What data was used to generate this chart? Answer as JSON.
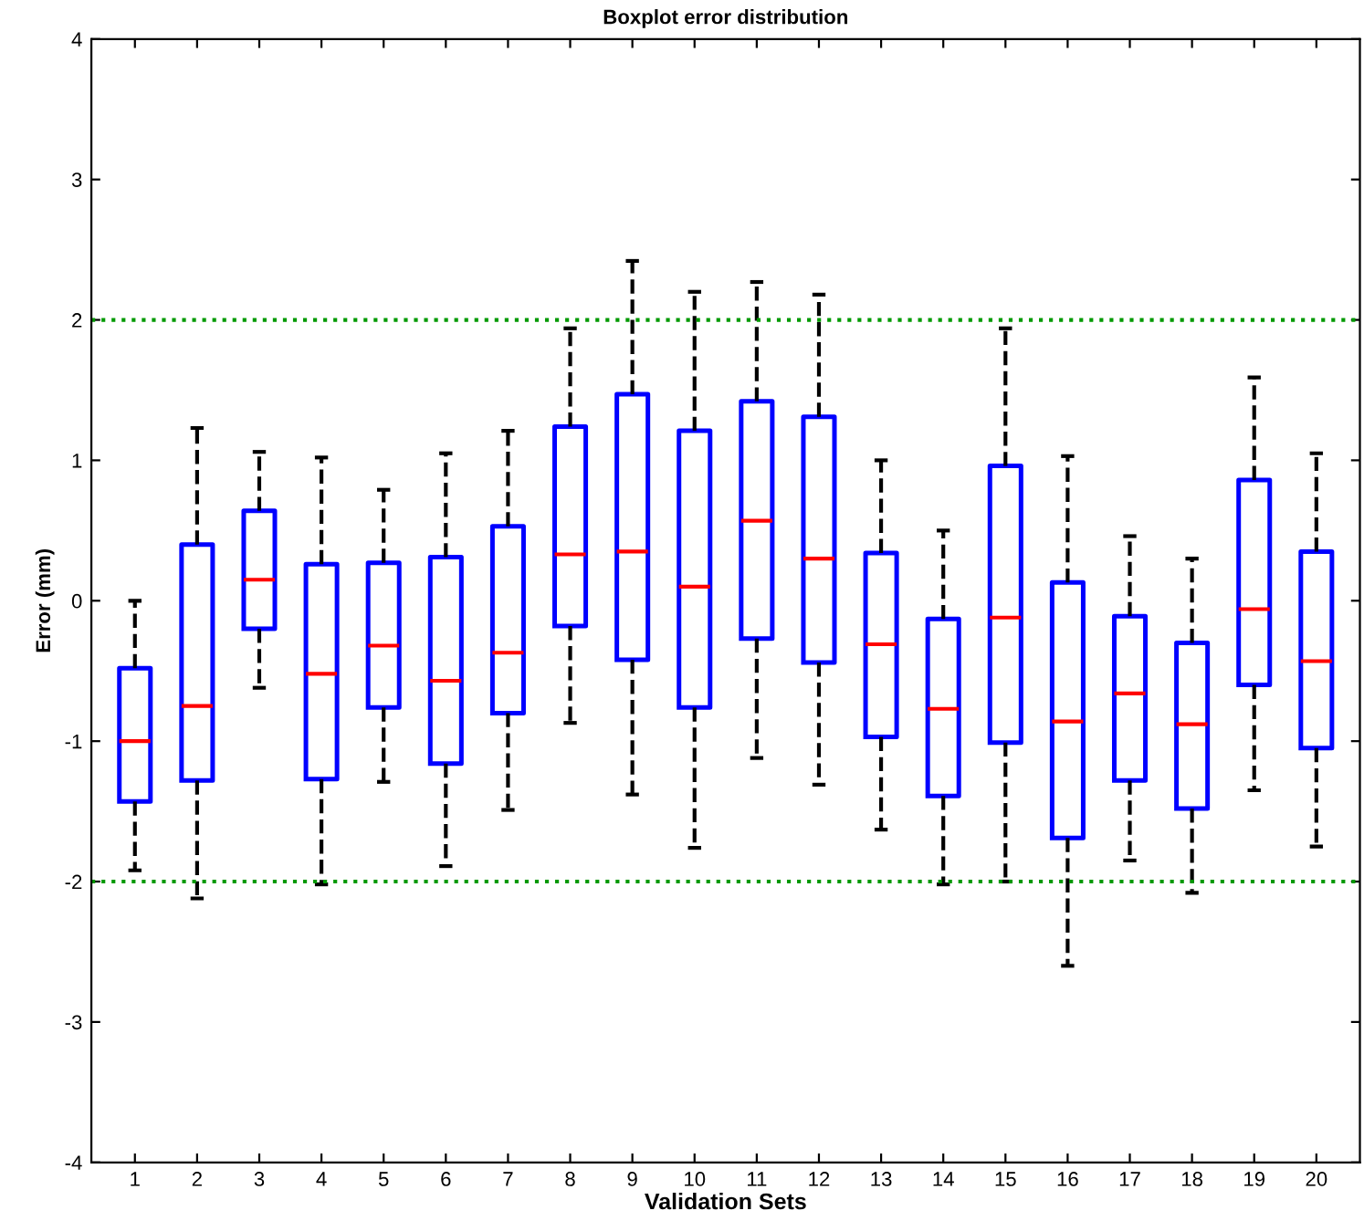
{
  "chart_data": {
    "type": "box",
    "title": "Boxplot error distribution",
    "xlabel": "Validation Sets",
    "ylabel": "Error (mm)",
    "categories": [
      "1",
      "2",
      "3",
      "4",
      "5",
      "6",
      "7",
      "8",
      "9",
      "10",
      "11",
      "12",
      "13",
      "14",
      "15",
      "16",
      "17",
      "18",
      "19",
      "20"
    ],
    "boxes": [
      {
        "low": -1.92,
        "q1": -1.43,
        "median": -1.0,
        "q3": -0.48,
        "high": 0.0
      },
      {
        "low": -2.12,
        "q1": -1.28,
        "median": -0.75,
        "q3": 0.4,
        "high": 1.23
      },
      {
        "low": -0.62,
        "q1": -0.2,
        "median": 0.15,
        "q3": 0.64,
        "high": 1.06
      },
      {
        "low": -2.02,
        "q1": -1.27,
        "median": -0.52,
        "q3": 0.26,
        "high": 1.02
      },
      {
        "low": -1.29,
        "q1": -0.76,
        "median": -0.32,
        "q3": 0.27,
        "high": 0.79
      },
      {
        "low": -1.89,
        "q1": -1.16,
        "median": -0.57,
        "q3": 0.31,
        "high": 1.05
      },
      {
        "low": -1.49,
        "q1": -0.8,
        "median": -0.37,
        "q3": 0.53,
        "high": 1.21
      },
      {
        "low": -0.87,
        "q1": -0.18,
        "median": 0.33,
        "q3": 1.24,
        "high": 1.94
      },
      {
        "low": -1.38,
        "q1": -0.42,
        "median": 0.35,
        "q3": 1.47,
        "high": 2.42
      },
      {
        "low": -1.76,
        "q1": -0.76,
        "median": 0.1,
        "q3": 1.21,
        "high": 2.2
      },
      {
        "low": -1.12,
        "q1": -0.27,
        "median": 0.57,
        "q3": 1.42,
        "high": 2.27
      },
      {
        "low": -1.31,
        "q1": -0.44,
        "median": 0.3,
        "q3": 1.31,
        "high": 2.18
      },
      {
        "low": -1.63,
        "q1": -0.97,
        "median": -0.31,
        "q3": 0.34,
        "high": 1.0
      },
      {
        "low": -2.02,
        "q1": -1.39,
        "median": -0.77,
        "q3": -0.13,
        "high": 0.5
      },
      {
        "low": -2.0,
        "q1": -1.01,
        "median": -0.12,
        "q3": 0.96,
        "high": 1.94
      },
      {
        "low": -2.6,
        "q1": -1.69,
        "median": -0.86,
        "q3": 0.13,
        "high": 1.03
      },
      {
        "low": -1.85,
        "q1": -1.28,
        "median": -0.66,
        "q3": -0.11,
        "high": 0.46
      },
      {
        "low": -2.08,
        "q1": -1.48,
        "median": -0.88,
        "q3": -0.3,
        "high": 0.3
      },
      {
        "low": -1.35,
        "q1": -0.6,
        "median": -0.06,
        "q3": 0.86,
        "high": 1.59
      },
      {
        "low": -1.75,
        "q1": -1.05,
        "median": -0.43,
        "q3": 0.35,
        "high": 1.05
      }
    ],
    "color": "#0000ff",
    "ylim": [
      -4,
      4
    ],
    "yticks": [
      -4,
      -3,
      -2,
      -1,
      0,
      1,
      2,
      3,
      4
    ],
    "ref_lines": [
      {
        "axis": "y",
        "value": 2,
        "color": "#009900",
        "line_style": "dotted"
      },
      {
        "axis": "y",
        "value": -2,
        "color": "#009900",
        "line_style": "dotted"
      }
    ],
    "grid": false,
    "legend": false
  }
}
